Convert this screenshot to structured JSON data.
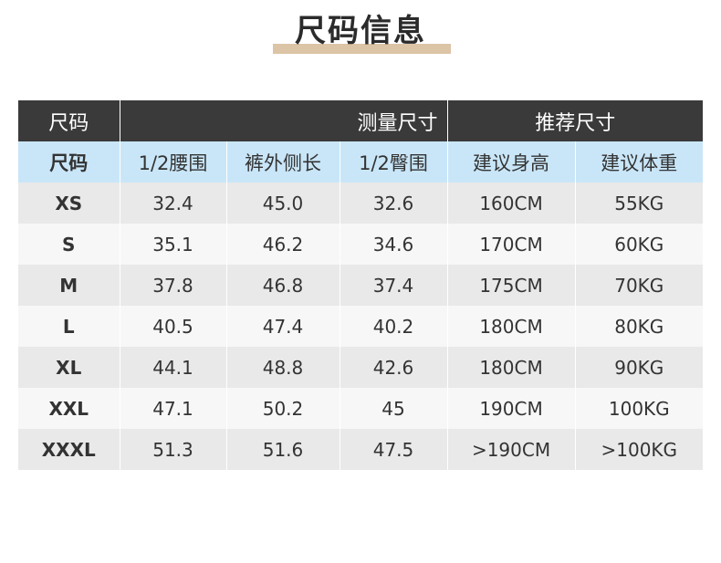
{
  "page_title": "尺码信息",
  "table": {
    "top_header": {
      "size_label": "尺码",
      "measured_label": "测量尺寸",
      "recommended_label": "推荐尺寸"
    },
    "columns": [
      "尺码",
      "1/2腰围",
      "裤外侧长",
      "1/2臀围",
      "建议身高",
      "建议体重"
    ],
    "rows": [
      [
        "XS",
        "32.4",
        "45.0",
        "32.6",
        "160CM",
        "55KG"
      ],
      [
        "S",
        "35.1",
        "46.2",
        "34.6",
        "170CM",
        "60KG"
      ],
      [
        "M",
        "37.8",
        "46.8",
        "37.4",
        "175CM",
        "70KG"
      ],
      [
        "L",
        "40.5",
        "47.4",
        "40.2",
        "180CM",
        "80KG"
      ],
      [
        "XL",
        "44.1",
        "48.8",
        "42.6",
        "180CM",
        "90KG"
      ],
      [
        "XXL",
        "47.1",
        "50.2",
        "45",
        "190CM",
        "100KG"
      ],
      [
        "XXXL",
        "51.3",
        "51.6",
        "47.5",
        ">190CM",
        ">100KG"
      ]
    ]
  },
  "colors": {
    "header_dark": "#3a3a3a",
    "subheader_blue": "#c9e6f8",
    "title_underline": "#dcc4a6",
    "row_shade_dark": "#e9e9e9",
    "row_shade_light": "#f7f7f7"
  }
}
